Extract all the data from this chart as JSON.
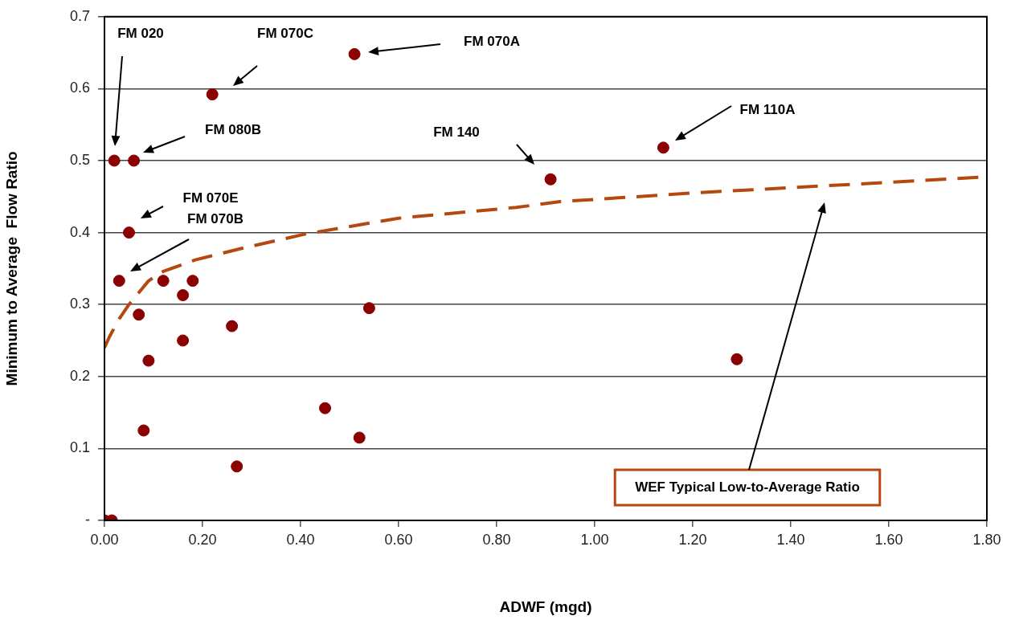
{
  "chart_data": {
    "type": "scatter",
    "xlabel": "ADWF (mgd)",
    "ylabel": "Minimum to Average  Flow Ratio",
    "xlim": [
      0,
      1.8
    ],
    "xticks": [
      {
        "value": 0,
        "label": "0.00"
      },
      {
        "value": 0.2,
        "label": "0.20"
      },
      {
        "value": 0.4,
        "label": "0.40"
      },
      {
        "value": 0.6,
        "label": "0.60"
      },
      {
        "value": 0.8,
        "label": "0.80"
      },
      {
        "value": 1,
        "label": "1.00"
      },
      {
        "value": 1.2,
        "label": "1.20"
      },
      {
        "value": 1.4,
        "label": "1.40"
      },
      {
        "value": 1.6,
        "label": "1.60"
      },
      {
        "value": 1.8,
        "label": "1.80"
      }
    ],
    "ylim": [
      0,
      0.7
    ],
    "yticks": [
      {
        "value": 0,
        "label": "-"
      },
      0.1,
      0.2,
      0.3,
      0.4,
      0.5,
      0.6,
      0.7
    ],
    "grid": "y",
    "legend": false,
    "marker": "circle",
    "series": [
      {
        "type": "scatter",
        "color": "#8b0000",
        "x": [
          0,
          0.015,
          0.02,
          0.06,
          0.05,
          0.03,
          0.07,
          0.09,
          0.08,
          0.12,
          0.16,
          0.18,
          0.16,
          0.22,
          0.26,
          0.27,
          0.45,
          0.51,
          0.52,
          0.54,
          0.91,
          1.14,
          1.29
        ],
        "values": [
          0,
          0,
          0.5,
          0.5,
          0.4,
          0.333,
          0.286,
          0.222,
          0.125,
          0.333,
          0.313,
          0.333,
          0.25,
          0.592,
          0.27,
          0.075,
          0.156,
          0.648,
          0.115,
          0.295,
          0.474,
          0.518,
          0.224
        ]
      },
      {
        "type": "line",
        "color": "#b5480f",
        "marker": "none",
        "line_style": "dashed",
        "x": [
          0,
          0.01,
          0.03,
          0.05,
          0.09,
          0.12,
          0.185,
          0.28,
          0.41,
          0.6,
          0.84,
          0.93,
          1.2,
          1.47,
          1.79
        ],
        "values": [
          0.24,
          0.255,
          0.28,
          0.3,
          0.333,
          0.346,
          0.362,
          0.378,
          0.398,
          0.42,
          0.435,
          0.443,
          0.455,
          0.465,
          0.477
        ]
      }
    ],
    "annotations": [
      "FM 020",
      "FM 080B",
      "FM 070E",
      "FM 070B",
      "FM 070C",
      "FM 070A",
      "FM 140",
      "FM 110A",
      "WEF Typical Low-to-Average Ratio"
    ]
  }
}
